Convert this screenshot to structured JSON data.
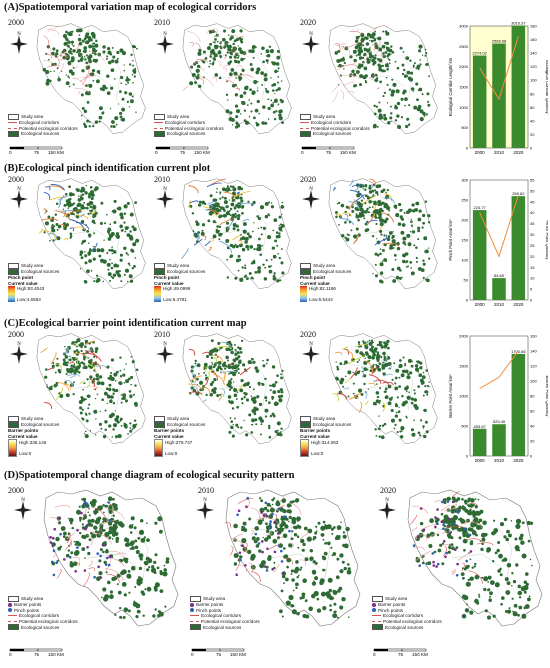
{
  "sections": [
    {
      "id": "A",
      "title": "(A)Spatiotemporal variation map of ecological corridors"
    },
    {
      "id": "B",
      "title": "(B)Ecological pinch identification current plot"
    },
    {
      "id": "C",
      "title": "(C)Ecological barrier point identification current map"
    },
    {
      "id": "D",
      "title": "(D)Spatiotemporal change diagram of ecological security pattern"
    }
  ],
  "years": [
    "2000",
    "2010",
    "2020"
  ],
  "north_label": "N",
  "scale": {
    "v0": "0",
    "v1": "75",
    "v2": "150 KM"
  },
  "legendA": {
    "study": "Study area",
    "corr": "Ecological corridors",
    "pot": "Potential ecological corridors",
    "src": "Ecological sources"
  },
  "legendB": {
    "study": "Study area",
    "src": "Ecological sources",
    "pinch": "Pinch point",
    "cur": "Current value",
    "ranges": [
      {
        "high": "High:93.4043",
        "low": "Low:4.6583"
      },
      {
        "high": "High:49.0999",
        "low": "Low:6.4781"
      },
      {
        "high": "High:82.1196",
        "low": "Low:5.5444"
      }
    ]
  },
  "legendC": {
    "study": "Study area",
    "src": "Ecological sources",
    "barrier": "Barrier points",
    "cur": "Current value",
    "ranges": [
      {
        "high": "High:336.145",
        "low": "Low:0"
      },
      {
        "high": "High:279.747",
        "low": "Low:0"
      },
      {
        "high": "High:314.063",
        "low": "Low:0"
      }
    ]
  },
  "legendD": {
    "study": "Study area",
    "barrier": "Barrier points",
    "pinch": "Pinch points",
    "corr": "Ecological corridors",
    "pot": "Potential ecological corridors",
    "src": "Ecological sources"
  },
  "colors": {
    "forest": "#2e6b34",
    "corridor": "#d9534f",
    "bar": "#3c8a2e",
    "line": "#f28c38",
    "fillA": "#ffffc0",
    "pinchBlue": "#2b5fb4",
    "barrierRed": "#c8102e"
  },
  "chart_data": [
    {
      "type": "bar",
      "categories": [
        "2000",
        "2010",
        "2020"
      ],
      "values": [
        2274.02,
        2568.68,
        3010.37
      ],
      "line": [
        118,
        72,
        165
      ],
      "ylabel": "Ecological Corridor Length/ km",
      "y2label": "Ecological Corridor Quantity",
      "ylim": [
        0,
        3000
      ],
      "y2lim": [
        0,
        180
      ],
      "yticks": [
        0,
        500,
        1000,
        1500,
        2000,
        2500,
        3000
      ],
      "y2ticks": [
        0,
        20,
        40,
        60,
        80,
        100,
        120,
        140,
        160,
        180
      ],
      "labels": [
        "2274.02",
        "2568.68",
        "3010.37"
      ]
    },
    {
      "type": "bar",
      "categories": [
        "2000",
        "2010",
        "2020"
      ],
      "values": [
        224.77,
        54.69,
        259.62
      ],
      "line": [
        40,
        20,
        48
      ],
      "ylabel": "Pinch Point Area/ km²",
      "y2label": "Pinch Point Quantity",
      "ylim": [
        0,
        300
      ],
      "y2lim": [
        0,
        55
      ],
      "yticks": [
        0,
        50,
        100,
        150,
        200,
        250,
        300
      ],
      "y2ticks": [
        0,
        5,
        10,
        15,
        20,
        25,
        30,
        35,
        40,
        45,
        50,
        55
      ],
      "labels": [
        "224.77",
        "54.69",
        "259.62"
      ]
    },
    {
      "type": "bar",
      "categories": [
        "2000",
        "2010",
        "2020"
      ],
      "values": [
        453.67,
        529.45,
        1700.66
      ],
      "line": [
        90,
        105,
        140
      ],
      "ylabel": "Barrier Point Area/ km²",
      "y2label": "Barrier Point Quantity",
      "ylim": [
        0,
        2000
      ],
      "y2lim": [
        0,
        160
      ],
      "yticks": [
        0,
        500,
        1000,
        1500,
        2000
      ],
      "y2ticks": [
        0,
        20,
        40,
        60,
        80,
        100,
        120,
        140,
        160
      ],
      "labels": [
        "453.67",
        "529.45",
        "1700.66"
      ]
    }
  ]
}
